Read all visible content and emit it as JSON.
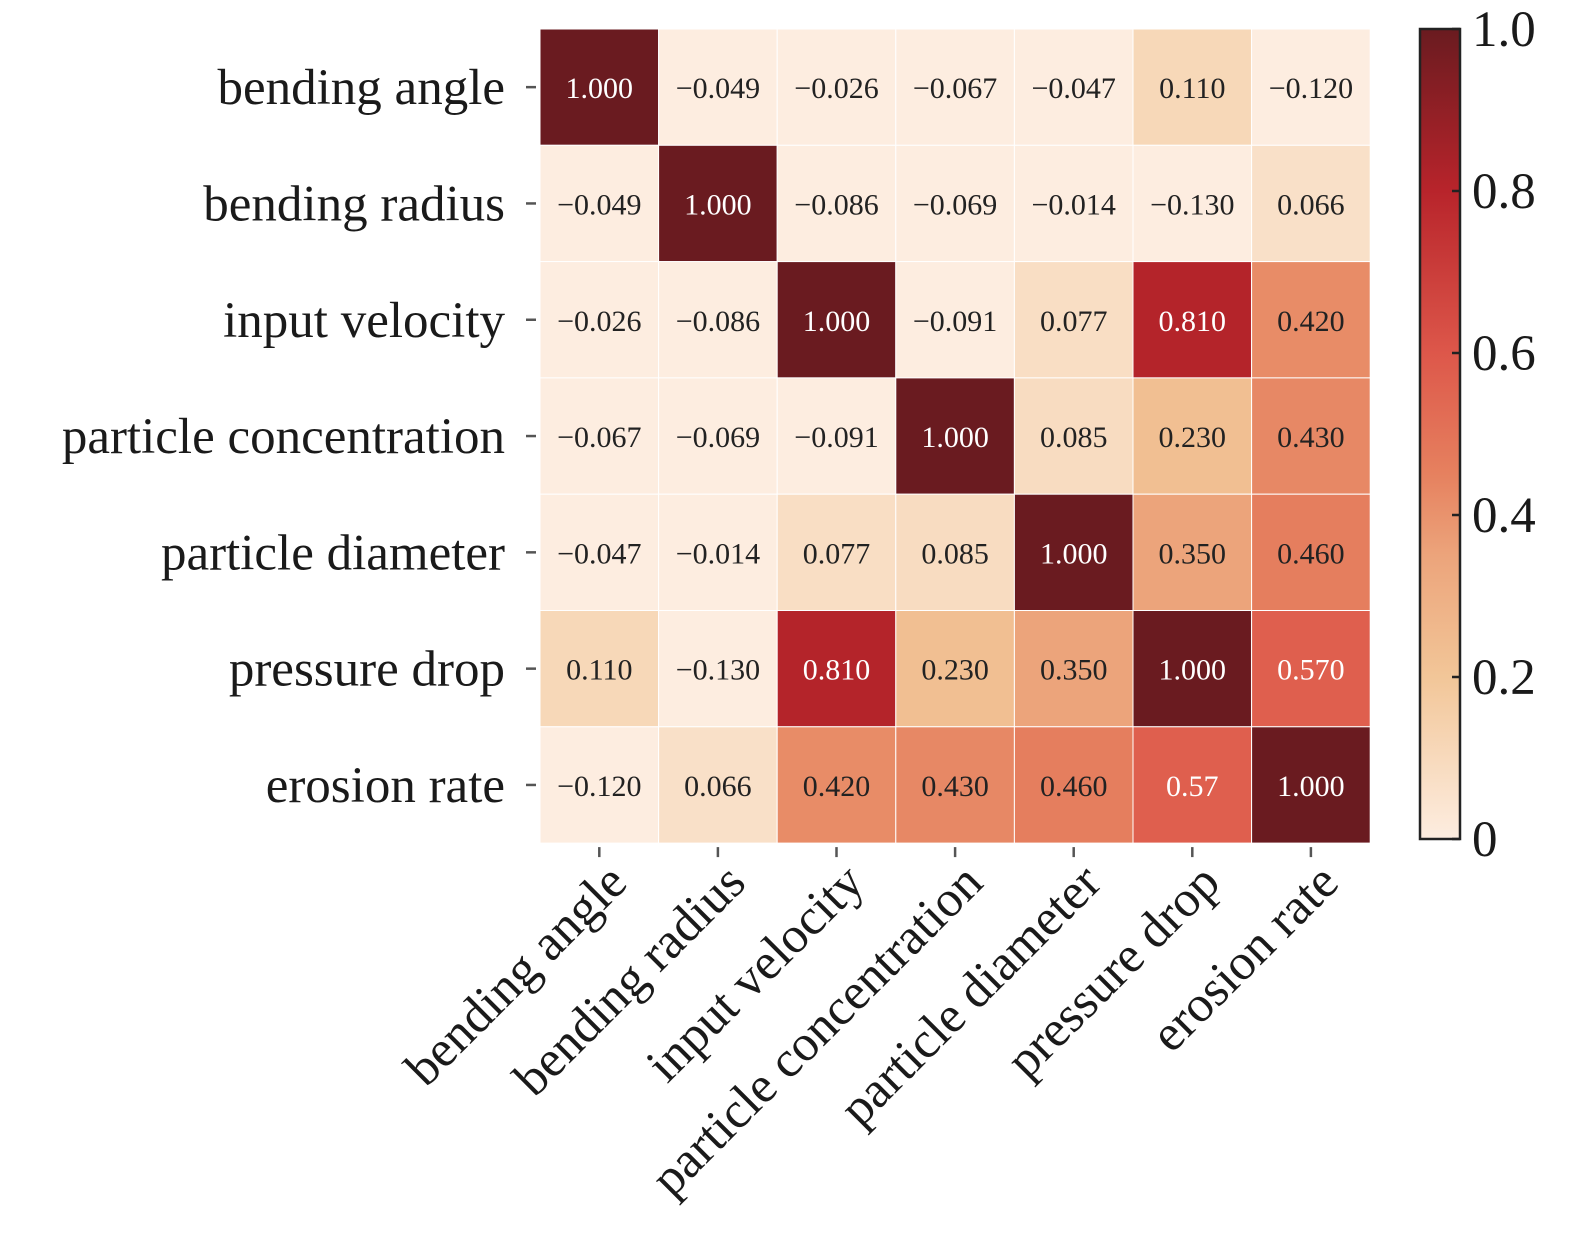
{
  "chart_data": {
    "type": "heatmap",
    "title": "",
    "xlabel": "",
    "ylabel": "",
    "row_labels": [
      "bending angle",
      "bending radius",
      "input velocity",
      "particle concentration",
      "particle diameter",
      "pressure drop",
      "erosion rate"
    ],
    "col_labels": [
      "bending angle",
      "bending radius",
      "input velocity",
      "particle concentration",
      "particle diameter",
      "pressure drop",
      "erosion rate"
    ],
    "values": [
      [
        1.0,
        -0.049,
        -0.026,
        -0.067,
        -0.047,
        0.11,
        -0.12
      ],
      [
        -0.049,
        1.0,
        -0.086,
        -0.069,
        -0.014,
        -0.13,
        0.066
      ],
      [
        -0.026,
        -0.086,
        1.0,
        -0.091,
        0.077,
        0.81,
        0.42
      ],
      [
        -0.067,
        -0.069,
        -0.091,
        1.0,
        0.085,
        0.23,
        0.43
      ],
      [
        -0.047,
        -0.014,
        0.077,
        0.085,
        1.0,
        0.35,
        0.46
      ],
      [
        0.11,
        -0.13,
        0.81,
        0.23,
        0.35,
        1.0,
        0.57
      ],
      [
        -0.12,
        0.066,
        0.42,
        0.43,
        0.46,
        0.57,
        1.0
      ]
    ],
    "cell_labels": [
      [
        "1.000",
        "−0.049",
        "−0.026",
        "−0.067",
        "−0.047",
        "0.110",
        "−0.120"
      ],
      [
        "−0.049",
        "1.000",
        "−0.086",
        "−0.069",
        "−0.014",
        "−0.130",
        "0.066"
      ],
      [
        "−0.026",
        "−0.086",
        "1.000",
        "−0.091",
        "0.077",
        "0.810",
        "0.420"
      ],
      [
        "−0.067",
        "−0.069",
        "−0.091",
        "1.000",
        "0.085",
        "0.230",
        "0.430"
      ],
      [
        "−0.047",
        "−0.014",
        "0.077",
        "0.085",
        "1.000",
        "0.350",
        "0.460"
      ],
      [
        "0.110",
        "−0.130",
        "0.810",
        "0.230",
        "0.350",
        "1.000",
        "0.570"
      ],
      [
        "−0.120",
        "0.066",
        "0.420",
        "0.430",
        "0.460",
        "0.57",
        "1.000"
      ]
    ],
    "colorbar": {
      "min": 0,
      "max": 1,
      "ticks": [
        0,
        0.2,
        0.4,
        0.6,
        0.8,
        1.0
      ],
      "tick_labels": [
        "0",
        "0.2",
        "0.4",
        "0.6",
        "0.8",
        "1.0"
      ]
    },
    "colormap": {
      "name": "OrRd-like",
      "stops": [
        {
          "v": 0.0,
          "color": "#fdede0"
        },
        {
          "v": 0.2,
          "color": "#f2c698"
        },
        {
          "v": 0.35,
          "color": "#eca47b"
        },
        {
          "v": 0.45,
          "color": "#e6815f"
        },
        {
          "v": 0.6,
          "color": "#dd574a"
        },
        {
          "v": 0.8,
          "color": "#b8242b"
        },
        {
          "v": 1.0,
          "color": "#6a1b20"
        }
      ]
    },
    "grid": false,
    "legend": "colorbar-right"
  }
}
